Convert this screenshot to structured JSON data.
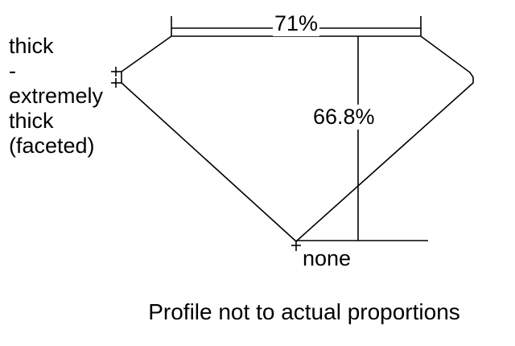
{
  "girdle_label": [
    "thick",
    "-",
    "extremely",
    "thick",
    "(faceted)"
  ],
  "table_percentage": "71%",
  "depth_percentage": "66.8%",
  "culet_label": "none",
  "caption": "Profile not to actual proportions",
  "line_color": "#000000"
}
